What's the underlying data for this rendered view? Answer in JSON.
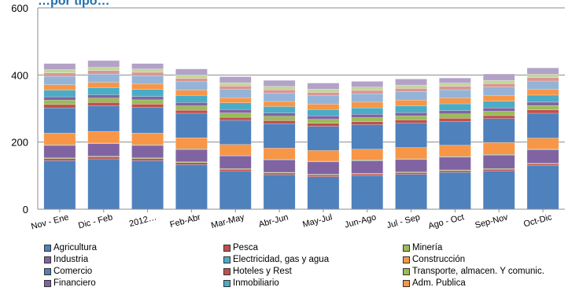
{
  "chart_data": {
    "type": "bar",
    "stacked": true,
    "title": "…por tipo…",
    "ylim": [
      0,
      600
    ],
    "yticks": [
      0,
      200,
      400,
      600
    ],
    "categories": [
      "Nov - Ene",
      "Dic - Feb",
      "2012…",
      "Feb-Abr",
      "Mar-May",
      "Abr-Jun",
      "May-Jul",
      "Jun-Ago",
      "Jul - Sep",
      "Ago - Oct",
      "Sep-Nov",
      "Oct-Dic"
    ],
    "series": [
      {
        "name": "Agricultura",
        "color": "#4f81bd",
        "values": [
          145,
          150,
          145,
          133,
          113,
          103,
          97,
          100,
          104,
          110,
          114,
          130
        ]
      },
      {
        "name": "Pesca",
        "color": "#c0504d",
        "values": [
          6,
          6,
          6,
          6,
          6,
          5,
          5,
          5,
          5,
          5,
          5,
          5
        ]
      },
      {
        "name": "Minería",
        "color": "#9bbb59",
        "values": [
          2,
          2,
          2,
          2,
          2,
          2,
          2,
          2,
          2,
          2,
          2,
          2
        ]
      },
      {
        "name": "Industria",
        "color": "#8064a2",
        "values": [
          37,
          37,
          37,
          37,
          38,
          37,
          37,
          37,
          37,
          38,
          40,
          40
        ]
      },
      {
        "name": "Electricidad, gas y agua",
        "color": "#4bacc6",
        "values": [
          2,
          2,
          2,
          2,
          2,
          2,
          2,
          2,
          2,
          2,
          2,
          2
        ]
      },
      {
        "name": "Construcción",
        "color": "#f79646",
        "values": [
          35,
          35,
          35,
          33,
          32,
          33,
          32,
          33,
          34,
          34,
          36,
          33
        ]
      },
      {
        "name": "Comercio",
        "color": "#4f81bd",
        "values": [
          75,
          76,
          76,
          73,
          72,
          73,
          72,
          73,
          73,
          71,
          71,
          74
        ]
      },
      {
        "name": "Hoteles y Rest",
        "color": "#c0504d",
        "values": [
          10,
          10,
          10,
          9,
          9,
          9,
          9,
          9,
          9,
          9,
          9,
          10
        ]
      },
      {
        "name": "Transporte, almacen. Y comunic.",
        "color": "#9bbb59",
        "values": [
          13,
          13,
          13,
          13,
          13,
          13,
          12,
          12,
          12,
          13,
          13,
          13
        ]
      },
      {
        "name": "Financiero",
        "color": "#8064a2",
        "values": [
          10,
          10,
          10,
          10,
          10,
          10,
          10,
          10,
          10,
          10,
          10,
          10
        ]
      },
      {
        "name": "Inmobiliario",
        "color": "#4bacc6",
        "values": [
          20,
          21,
          21,
          21,
          20,
          19,
          19,
          19,
          20,
          20,
          20,
          21
        ]
      },
      {
        "name": "Adm. Publica",
        "color": "#f79646",
        "values": [
          16,
          16,
          16,
          16,
          15,
          15,
          16,
          17,
          17,
          17,
          17,
          17
        ]
      },
      {
        "name": "",
        "color": "#95b3d7",
        "values": [
          25,
          25,
          25,
          25,
          25,
          25,
          25,
          25,
          25,
          25,
          25,
          25
        ]
      },
      {
        "name": "",
        "color": "#d99694",
        "values": [
          10,
          10,
          10,
          10,
          10,
          10,
          10,
          10,
          10,
          10,
          10,
          10
        ]
      },
      {
        "name": "",
        "color": "#c3d69b",
        "values": [
          10,
          10,
          10,
          10,
          10,
          10,
          10,
          10,
          10,
          10,
          10,
          10
        ]
      },
      {
        "name": "",
        "color": "#b3a2c7",
        "values": [
          18,
          20,
          16,
          18,
          18,
          18,
          18,
          17,
          18,
          15,
          19,
          19
        ]
      }
    ]
  }
}
